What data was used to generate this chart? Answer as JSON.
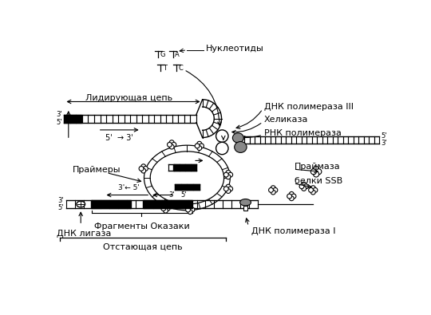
{
  "background_color": "#ffffff",
  "labels": {
    "nucleotides": "Нуклеотиды",
    "dna_pol3": "ДНК полимераза III",
    "helicase": "Хеликаза",
    "rna_pol": "РНК полимераза",
    "leading_strand": "Лидирующая цепь",
    "lagging_strand": "Отстающая цепь",
    "primers": "Праймеры",
    "primase": "Праймаза",
    "ssb": "белки SSB",
    "dna_pol1": "ДНК полимераза I",
    "okazaki": "Фрагменты Оказаки",
    "dna_ligase": "ДНК лигаза",
    "dir_5_3": "5'  → 3'",
    "three_arrow_five": "3'← 5'",
    "g": "G",
    "a": "A",
    "t": "T",
    "c": "C"
  },
  "colors": {
    "black": "#000000",
    "gray": "#888888",
    "white": "#ffffff"
  }
}
